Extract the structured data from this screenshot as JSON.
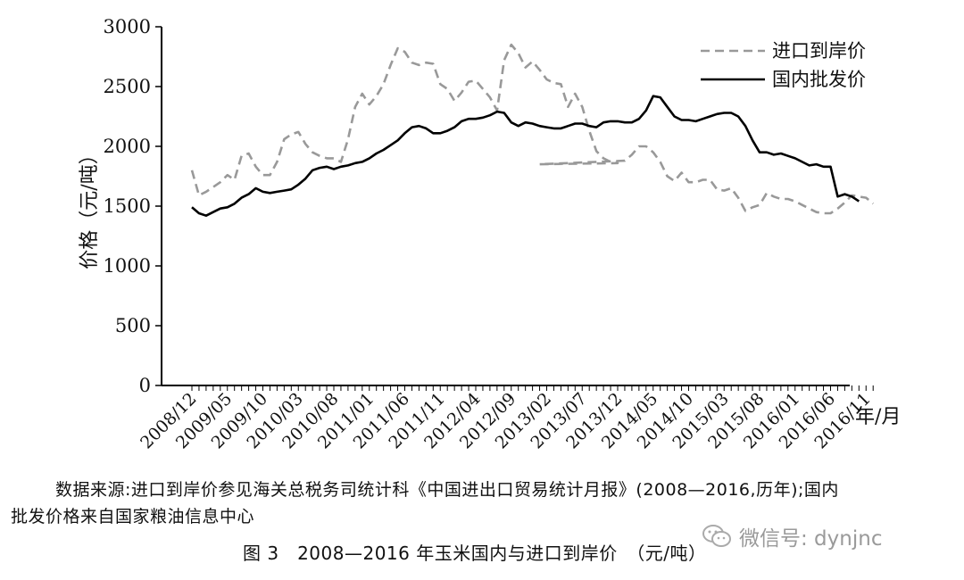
{
  "chart_data": {
    "type": "line",
    "title": "",
    "xlabel": "年/月",
    "ylabel": "价格（元/吨）",
    "ylim": [
      0,
      3000
    ],
    "yticks": [
      0,
      500,
      1000,
      1500,
      2000,
      2500,
      3000
    ],
    "x_tick_labels": [
      "2008/12",
      "2009/05",
      "2009/10",
      "2010/03",
      "2010/08",
      "2011/01",
      "2011/06",
      "2011/11",
      "2012/04",
      "2012/09",
      "2013/02",
      "2013/07",
      "2013/12",
      "2014/05",
      "2014/10",
      "2015/03",
      "2015/08",
      "2016/01",
      "2016/06",
      "2016/11"
    ],
    "x_range": [
      "2008/12",
      "2016/12"
    ],
    "legend_position": "top-right",
    "series": [
      {
        "name": "进口到岸价",
        "style": "dashed",
        "color": "#999999",
        "points": [
          [
            "2008/12",
            1800
          ],
          [
            "2009/01",
            1590
          ],
          [
            "2009/02",
            1620
          ],
          [
            "2009/03",
            1660
          ],
          [
            "2009/04",
            1700
          ],
          [
            "2009/05",
            1760
          ],
          [
            "2009/06",
            1720
          ],
          [
            "2009/07",
            1920
          ],
          [
            "2009/08",
            1940
          ],
          [
            "2009/09",
            1830
          ],
          [
            "2009/10",
            1760
          ],
          [
            "2009/11",
            1760
          ],
          [
            "2009/12",
            1870
          ],
          [
            "2010/01",
            2060
          ],
          [
            "2010/02",
            2100
          ],
          [
            "2010/03",
            2120
          ],
          [
            "2010/04",
            2020
          ],
          [
            "2010/05",
            1950
          ],
          [
            "2010/06",
            1920
          ],
          [
            "2010/07",
            1900
          ],
          [
            "2010/08",
            1900
          ],
          [
            "2010/09",
            1870
          ],
          [
            "2010/10",
            2060
          ],
          [
            "2010/11",
            2330
          ],
          [
            "2010/12",
            2440
          ],
          [
            "2011/01",
            2350
          ],
          [
            "2011/02",
            2420
          ],
          [
            "2011/03",
            2520
          ],
          [
            "2011/04",
            2680
          ],
          [
            "2011/05",
            2820
          ],
          [
            "2011/06",
            2790
          ],
          [
            "2011/07",
            2700
          ],
          [
            "2011/08",
            2680
          ],
          [
            "2011/09",
            2700
          ],
          [
            "2011/10",
            2690
          ],
          [
            "2011/11",
            2520
          ],
          [
            "2011/12",
            2480
          ],
          [
            "2012/01",
            2380
          ],
          [
            "2012/02",
            2450
          ],
          [
            "2012/03",
            2540
          ],
          [
            "2012/04",
            2550
          ],
          [
            "2012/05",
            2480
          ],
          [
            "2012/06",
            2410
          ],
          [
            "2012/07",
            2300
          ],
          [
            "2012/08",
            2720
          ],
          [
            "2012/09",
            2850
          ],
          [
            "2012/10",
            2780
          ],
          [
            "2012/11",
            2660
          ],
          [
            "2012/12",
            2710
          ],
          [
            "2013/01",
            2640
          ],
          [
            "2013/02",
            2560
          ],
          [
            "2013/03",
            2530
          ],
          [
            "2013/04",
            2520
          ],
          [
            "2013/05",
            2330
          ],
          [
            "2013/06",
            2440
          ],
          [
            "2013/07",
            2330
          ],
          [
            "2013/08",
            2130
          ],
          [
            "2013/09",
            1960
          ],
          [
            "2013/10",
            1900
          ],
          [
            "2013/11",
            1870
          ],
          [
            "2013/12",
            1860
          ],
          [
            "2013/01",
            1850
          ],
          [
            "2014/01",
            1880
          ],
          [
            "2014/02",
            1930
          ],
          [
            "2014/03",
            2000
          ],
          [
            "2014/04",
            2000
          ],
          [
            "2014/05",
            1950
          ],
          [
            "2014/06",
            1870
          ],
          [
            "2014/07",
            1750
          ],
          [
            "2014/08",
            1710
          ],
          [
            "2014/09",
            1780
          ],
          [
            "2014/10",
            1700
          ],
          [
            "2014/11",
            1700
          ],
          [
            "2014/12",
            1720
          ],
          [
            "2015/01",
            1720
          ],
          [
            "2015/02",
            1640
          ],
          [
            "2015/03",
            1630
          ],
          [
            "2015/04",
            1650
          ],
          [
            "2015/05",
            1570
          ],
          [
            "2015/06",
            1460
          ],
          [
            "2015/07",
            1490
          ],
          [
            "2015/08",
            1510
          ],
          [
            "2015/09",
            1610
          ],
          [
            "2015/10",
            1580
          ],
          [
            "2015/11",
            1560
          ],
          [
            "2015/12",
            1560
          ],
          [
            "2016/01",
            1540
          ],
          [
            "2016/02",
            1510
          ],
          [
            "2016/03",
            1480
          ],
          [
            "2016/04",
            1450
          ],
          [
            "2016/05",
            1440
          ],
          [
            "2016/06",
            1440
          ],
          [
            "2016/07",
            1480
          ],
          [
            "2016/08",
            1530
          ],
          [
            "2016/09",
            1590
          ],
          [
            "2016/10",
            1580
          ],
          [
            "2016/11",
            1570
          ],
          [
            "2016/12",
            1520
          ]
        ]
      },
      {
        "name": "国内批发价",
        "style": "solid",
        "color": "#000000",
        "points": [
          [
            "2008/12",
            1490
          ],
          [
            "2009/01",
            1440
          ],
          [
            "2009/02",
            1420
          ],
          [
            "2009/03",
            1450
          ],
          [
            "2009/04",
            1480
          ],
          [
            "2009/05",
            1490
          ],
          [
            "2009/06",
            1520
          ],
          [
            "2009/07",
            1570
          ],
          [
            "2009/08",
            1600
          ],
          [
            "2009/09",
            1650
          ],
          [
            "2009/10",
            1620
          ],
          [
            "2009/11",
            1610
          ],
          [
            "2009/12",
            1620
          ],
          [
            "2010/01",
            1630
          ],
          [
            "2010/02",
            1640
          ],
          [
            "2010/03",
            1680
          ],
          [
            "2010/04",
            1730
          ],
          [
            "2010/05",
            1800
          ],
          [
            "2010/06",
            1820
          ],
          [
            "2010/07",
            1830
          ],
          [
            "2010/08",
            1810
          ],
          [
            "2010/09",
            1830
          ],
          [
            "2010/10",
            1840
          ],
          [
            "2010/11",
            1860
          ],
          [
            "2010/12",
            1870
          ],
          [
            "2011/01",
            1900
          ],
          [
            "2011/02",
            1940
          ],
          [
            "2011/03",
            1970
          ],
          [
            "2011/04",
            2010
          ],
          [
            "2011/05",
            2050
          ],
          [
            "2011/06",
            2110
          ],
          [
            "2011/07",
            2160
          ],
          [
            "2011/08",
            2170
          ],
          [
            "2011/09",
            2150
          ],
          [
            "2011/10",
            2110
          ],
          [
            "2011/11",
            2110
          ],
          [
            "2011/12",
            2130
          ],
          [
            "2012/01",
            2160
          ],
          [
            "2012/02",
            2210
          ],
          [
            "2012/03",
            2230
          ],
          [
            "2012/04",
            2230
          ],
          [
            "2012/05",
            2240
          ],
          [
            "2012/06",
            2260
          ],
          [
            "2012/07",
            2290
          ],
          [
            "2012/08",
            2280
          ],
          [
            "2012/09",
            2200
          ],
          [
            "2012/10",
            2170
          ],
          [
            "2012/11",
            2200
          ],
          [
            "2012/12",
            2190
          ],
          [
            "2013/01",
            2170
          ],
          [
            "2013/02",
            2160
          ],
          [
            "2013/03",
            2150
          ],
          [
            "2013/04",
            2150
          ],
          [
            "2013/05",
            2170
          ],
          [
            "2013/06",
            2190
          ],
          [
            "2013/07",
            2190
          ],
          [
            "2013/08",
            2170
          ],
          [
            "2013/09",
            2160
          ],
          [
            "2013/10",
            2200
          ],
          [
            "2013/11",
            2210
          ],
          [
            "2013/12",
            2210
          ],
          [
            "2014/01",
            2200
          ],
          [
            "2014/02",
            2200
          ],
          [
            "2014/03",
            2230
          ],
          [
            "2014/04",
            2300
          ],
          [
            "2014/05",
            2420
          ],
          [
            "2014/06",
            2410
          ],
          [
            "2014/07",
            2330
          ],
          [
            "2014/08",
            2250
          ],
          [
            "2014/09",
            2220
          ],
          [
            "2014/10",
            2220
          ],
          [
            "2014/11",
            2210
          ],
          [
            "2014/12",
            2230
          ],
          [
            "2015/01",
            2250
          ],
          [
            "2015/02",
            2270
          ],
          [
            "2015/03",
            2280
          ],
          [
            "2015/04",
            2280
          ],
          [
            "2015/05",
            2250
          ],
          [
            "2015/06",
            2170
          ],
          [
            "2015/07",
            2050
          ],
          [
            "2015/08",
            1950
          ],
          [
            "2015/09",
            1950
          ],
          [
            "2015/10",
            1930
          ],
          [
            "2015/11",
            1940
          ],
          [
            "2015/12",
            1920
          ],
          [
            "2016/01",
            1900
          ],
          [
            "2016/02",
            1870
          ],
          [
            "2016/03",
            1840
          ],
          [
            "2016/04",
            1850
          ],
          [
            "2016/05",
            1830
          ],
          [
            "2016/06",
            1830
          ],
          [
            "2016/07",
            1580
          ],
          [
            "2016/08",
            1600
          ],
          [
            "2016/09",
            1580
          ],
          [
            "2016/10",
            1540
          ]
        ]
      }
    ]
  },
  "source_text": {
    "line1": "数据来源:进口到岸价参见海关总税务司统计科《中国进出口贸易统计月报》(2008—2016,历年);国内",
    "line2": "批发价格来自国家粮油信息中心"
  },
  "figure_caption": "图 3　2008—2016 年玉米国内与进口到岸价　（元/吨）",
  "watermark": {
    "icon": "wechat-icon",
    "text": "微信号: dynjnc"
  }
}
